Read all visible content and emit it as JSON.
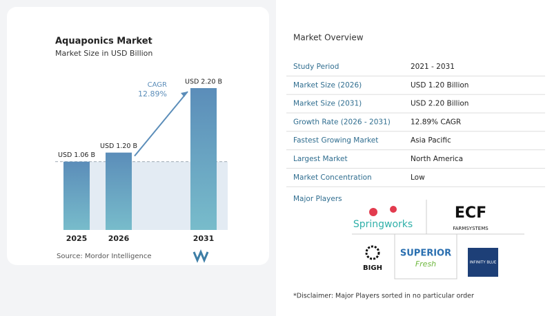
{
  "chart_data": {
    "type": "bar",
    "title": "Aquaponics Market",
    "subtitle": "Market Size in USD Billion",
    "categories": [
      "2025",
      "2026",
      "2031"
    ],
    "values": [
      1.06,
      1.2,
      2.2
    ],
    "value_labels": [
      "USD 1.06 B",
      "USD 1.20 B",
      "USD 2.20 B"
    ],
    "annotation": {
      "label": "CAGR",
      "text": "12.89%"
    },
    "color": "#5e93bb",
    "source": "Source:  Mordor Intelligence"
  },
  "overview": {
    "title": "Market Overview",
    "rows": [
      [
        "Study Period",
        "2021 - 2031"
      ],
      [
        "Market Size (2026)",
        "USD 1.20 Billion"
      ],
      [
        "Market Size (2031)",
        "USD 2.20 Billion"
      ],
      [
        "Growth Rate (2026 - 2031)",
        "12.89% CAGR"
      ],
      [
        "Fastest Growing Market",
        "Asia Pacific"
      ],
      [
        "Largest Market",
        "North America"
      ],
      [
        "Market Concentration",
        "Low"
      ]
    ]
  },
  "players": {
    "title": "Major Players",
    "names": [
      "Springworks",
      "ECF",
      "FARMSYSTEMS",
      "BIGH",
      "SUPERIOR",
      "Fresh",
      "INFINITY BLUE"
    ]
  },
  "disclaimer": "*Disclaimer: Major Players sorted in no particular order"
}
